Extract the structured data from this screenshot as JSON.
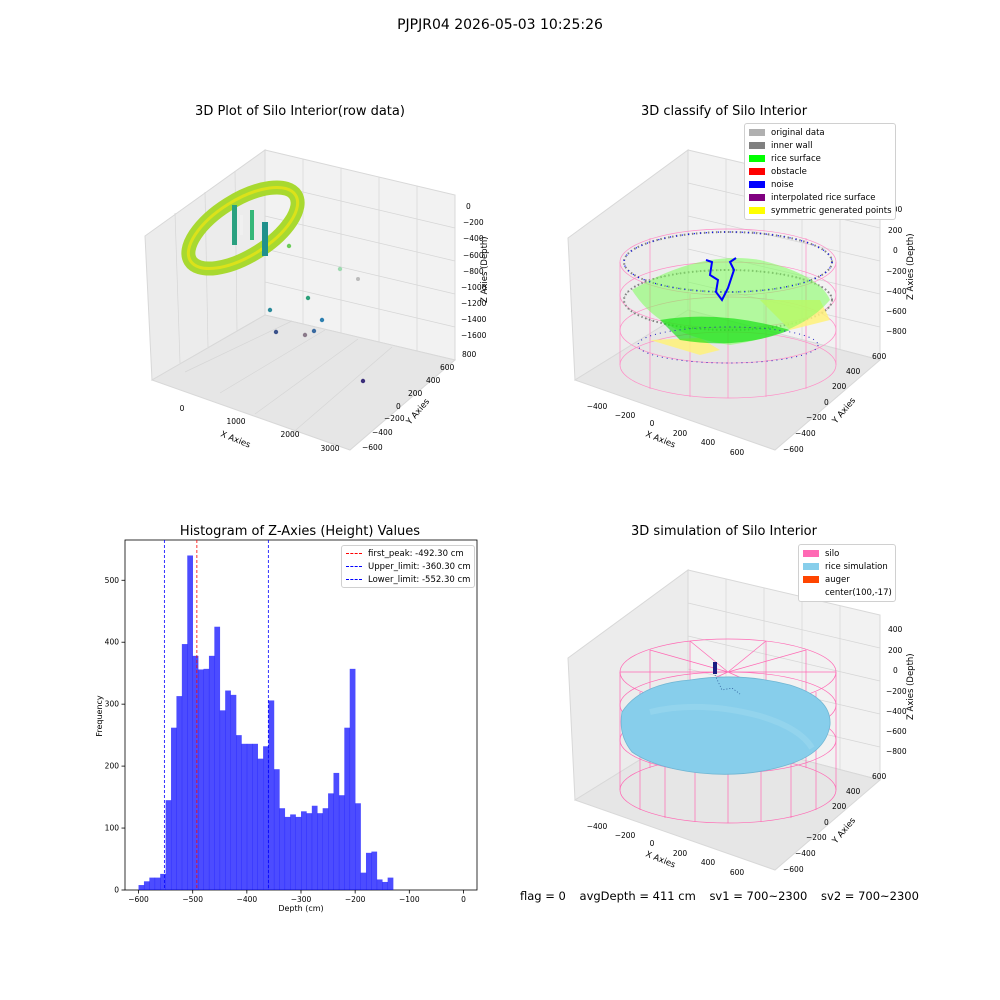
{
  "suptitle": "PJPJR04 2026-05-03 10:25:26",
  "panels": {
    "raw": {
      "title": "3D Plot of Silo Interior(row data)",
      "xlabel": "X Axies",
      "ylabel": "Y Axies",
      "zlabel": "Z Axies (Depth)",
      "xticks": [
        "0",
        "1000",
        "2000",
        "3000"
      ],
      "yticks": [
        "800",
        "600",
        "400",
        "200",
        "0",
        "−200",
        "−400",
        "−600"
      ],
      "zticks": [
        "0",
        "−200",
        "−400",
        "−600",
        "−800",
        "−1000",
        "−1200",
        "−1400",
        "−1600"
      ]
    },
    "classify": {
      "title": "3D classify of Silo Interior",
      "xlabel": "X Axies",
      "ylabel": "Y Axies",
      "zlabel": "Z Axies (Depth)",
      "xticks": [
        "−400",
        "−200",
        "0",
        "200",
        "400",
        "600"
      ],
      "yticks": [
        "600",
        "400",
        "200",
        "0",
        "−200",
        "−400",
        "−600"
      ],
      "zticks": [
        "400",
        "200",
        "0",
        "−200",
        "−400",
        "−600",
        "−800"
      ],
      "legend": [
        {
          "label": "original data",
          "color": "#b0b0b0"
        },
        {
          "label": "inner wall",
          "color": "#808080"
        },
        {
          "label": "rice surface",
          "color": "#00ff00"
        },
        {
          "label": "obstacle",
          "color": "#ff0000"
        },
        {
          "label": "noise",
          "color": "#0000ff"
        },
        {
          "label": "interpolated rice surface",
          "color": "#800080"
        },
        {
          "label": "symmetric generated points",
          "color": "#ffff00"
        }
      ]
    },
    "simulation": {
      "title": "3D simulation of Silo Interior",
      "xlabel": "X Axies",
      "ylabel": "Y Axies",
      "zlabel": "Z Axies (Depth)",
      "xticks": [
        "−400",
        "−200",
        "0",
        "200",
        "400",
        "600"
      ],
      "yticks": [
        "600",
        "400",
        "200",
        "0",
        "−200",
        "−400",
        "−600"
      ],
      "zticks": [
        "400",
        "200",
        "0",
        "−200",
        "−400",
        "−600",
        "−800"
      ],
      "legend": [
        {
          "label": "silo",
          "color": "#ff69b4"
        },
        {
          "label": "rice simulation",
          "color": "#87ceeb"
        },
        {
          "label": "auger",
          "color": "#ff4500"
        },
        {
          "label": "center(100,-17)",
          "color": ""
        }
      ]
    }
  },
  "chart_data": {
    "type": "bar",
    "title": "Histogram of Z-Axies (Height) Values",
    "xlabel": "Depth (cm)",
    "ylabel": "Frequency",
    "bar_color": "#0000ff",
    "xlim": [
      -625,
      25
    ],
    "ylim": [
      0,
      565
    ],
    "xticks": [
      -600,
      -500,
      -400,
      -300,
      -200,
      -100,
      0
    ],
    "xtick_labels": [
      "−600",
      "−500",
      "−400",
      "−300",
      "−200",
      "−100",
      "0"
    ],
    "yticks": [
      0,
      100,
      200,
      300,
      400,
      500
    ],
    "bin_start": -600,
    "bin_width": 10,
    "values": [
      8,
      14,
      20,
      20,
      26,
      145,
      262,
      313,
      397,
      540,
      378,
      356,
      357,
      378,
      425,
      290,
      322,
      315,
      250,
      236,
      236,
      236,
      212,
      232,
      306,
      195,
      132,
      118,
      122,
      118,
      127,
      124,
      136,
      124,
      132,
      156,
      189,
      153,
      262,
      357,
      140,
      28,
      60,
      62,
      17,
      13,
      20
    ],
    "vlines": [
      {
        "x": -492.3,
        "color": "#ff0000",
        "label": "first_peak: -492.30 cm"
      },
      {
        "x": -360.3,
        "color": "#0000ff",
        "label": "Upper_limit: -360.30 cm"
      },
      {
        "x": -552.3,
        "color": "#0000ff",
        "label": "Lower_limit: -552.30 cm"
      }
    ]
  },
  "footer": {
    "flag": "flag = 0",
    "avg": "avgDepth = 411 cm",
    "sv1": "sv1 = 700~2300",
    "sv2": "sv2 = 700~2300"
  }
}
